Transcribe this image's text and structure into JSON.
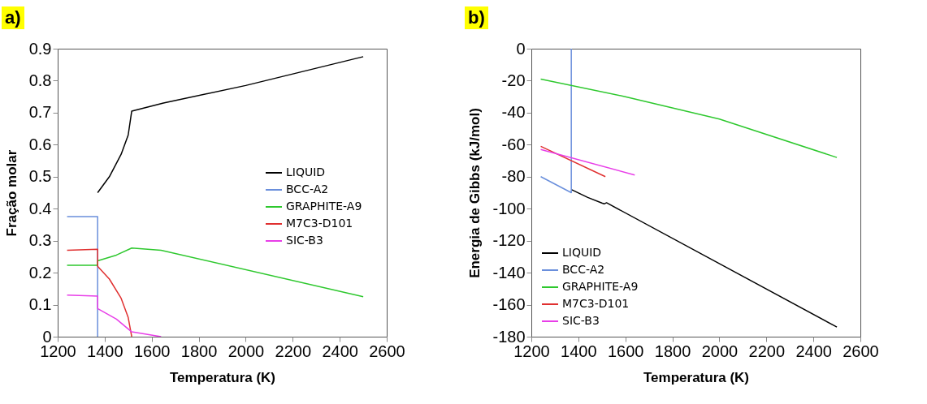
{
  "chart_data": [
    {
      "type": "line",
      "title": "a)",
      "xlabel": "Temperatura (K)",
      "ylabel": "Fração molar",
      "xlim": [
        1200,
        2600
      ],
      "xticks": [
        1200,
        1400,
        1600,
        1800,
        2000,
        2200,
        2400,
        2600
      ],
      "ylim": [
        0,
        0.9
      ],
      "yticks": [
        0,
        0.1,
        0.2,
        0.3,
        0.4,
        0.5,
        0.6,
        0.7,
        0.8,
        0.9
      ],
      "legend": "right",
      "series": [
        {
          "name": "LIQUID",
          "color": "#000000",
          "x": [
            1370,
            1420,
            1470,
            1500,
            1515,
            1650,
            2000,
            2500
          ],
          "values": [
            0.45,
            0.5,
            0.57,
            0.63,
            0.705,
            0.73,
            0.785,
            0.875
          ]
        },
        {
          "name": "BCC-A2",
          "color": "#6a8fdc",
          "x": [
            1240,
            1370,
            1370
          ],
          "values": [
            0.375,
            0.375,
            0
          ]
        },
        {
          "name": "GRAPHITE-A9",
          "color": "#2ec82e",
          "x": [
            1240,
            1370,
            1370,
            1450,
            1515,
            1640,
            2500
          ],
          "values": [
            0.223,
            0.223,
            0.237,
            0.255,
            0.277,
            0.27,
            0.125
          ]
        },
        {
          "name": "M7C3-D101",
          "color": "#e03030",
          "x": [
            1240,
            1370,
            1370,
            1420,
            1470,
            1500,
            1515
          ],
          "values": [
            0.27,
            0.273,
            0.22,
            0.18,
            0.12,
            0.06,
            0
          ]
        },
        {
          "name": "SIC-B3",
          "color": "#e83ee8",
          "x": [
            1240,
            1370,
            1370,
            1450,
            1515,
            1640
          ],
          "values": [
            0.13,
            0.127,
            0.088,
            0.055,
            0.015,
            0
          ]
        }
      ]
    },
    {
      "type": "line",
      "title": "b)",
      "xlabel": "Temperatura (K)",
      "ylabel": "Energia de Gibbs  (kJ/mol)",
      "xlim": [
        1200,
        2600
      ],
      "xticks": [
        1200,
        1400,
        1600,
        1800,
        2000,
        2200,
        2400,
        2600
      ],
      "ylim": [
        -180,
        0
      ],
      "yticks": [
        -180,
        -160,
        -140,
        -120,
        -100,
        -80,
        -60,
        -40,
        -20,
        0
      ],
      "legend": "bottom left",
      "series": [
        {
          "name": "LIQUID",
          "color": "#000000",
          "x": [
            1370,
            1440,
            1500,
            1510,
            1520,
            2500
          ],
          "values": [
            -88,
            -93,
            -96.5,
            -97,
            -96.3,
            -174
          ]
        },
        {
          "name": "BCC-A2",
          "color": "#6a8fdc",
          "x": [
            1240,
            1370,
            1370
          ],
          "values": [
            -80,
            -90,
            0
          ]
        },
        {
          "name": "GRAPHITE-A9",
          "color": "#2ec82e",
          "x": [
            1240,
            1600,
            2000,
            2500
          ],
          "values": [
            -19,
            -30,
            -44,
            -68
          ]
        },
        {
          "name": "M7C3-D101",
          "color": "#e03030",
          "x": [
            1240,
            1515
          ],
          "values": [
            -61,
            -80
          ]
        },
        {
          "name": "SIC-B3",
          "color": "#e83ee8",
          "x": [
            1240,
            1640
          ],
          "values": [
            -63,
            -79
          ]
        }
      ]
    }
  ]
}
